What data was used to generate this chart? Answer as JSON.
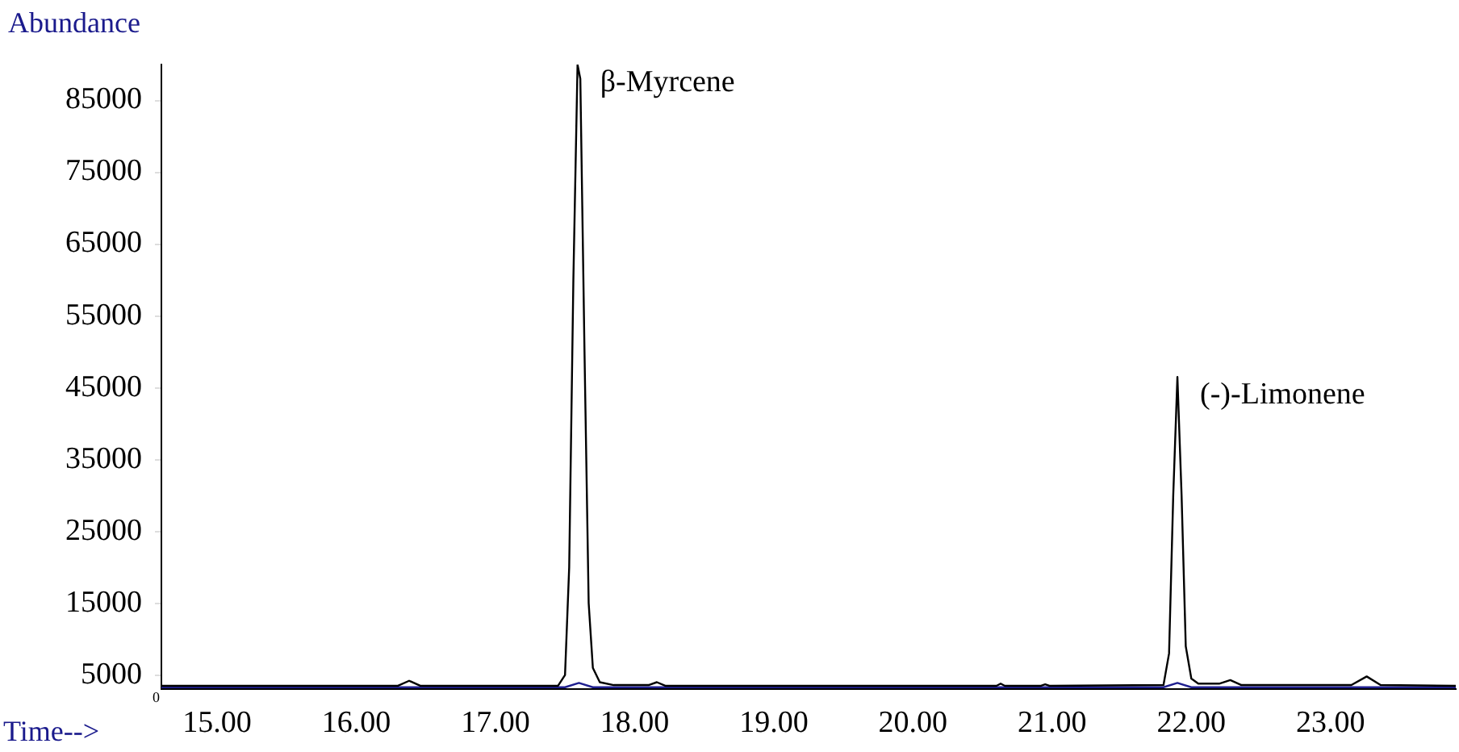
{
  "chart_data": {
    "type": "line",
    "xlabel": "Time-->",
    "ylabel": "Abundance",
    "xlim": [
      14.6,
      23.9
    ],
    "ylim": [
      3000,
      90000
    ],
    "xticks": [
      {
        "value": 15,
        "label": "15.00"
      },
      {
        "value": 16,
        "label": "16.00"
      },
      {
        "value": 17,
        "label": "17.00"
      },
      {
        "value": 18,
        "label": "18.00"
      },
      {
        "value": 19,
        "label": "19.00"
      },
      {
        "value": 20,
        "label": "20.00"
      },
      {
        "value": 21,
        "label": "21.00"
      },
      {
        "value": 22,
        "label": "22.00"
      },
      {
        "value": 23,
        "label": "23.00"
      }
    ],
    "yticks": [
      5000,
      15000,
      25000,
      35000,
      45000,
      55000,
      65000,
      75000,
      85000
    ],
    "grid": false,
    "legend": false,
    "marker": "none",
    "line_style": "solid",
    "series": [
      {
        "color": "#000000",
        "x": [
          14.6,
          16.3,
          16.38,
          16.46,
          17.45,
          17.5,
          17.53,
          17.56,
          17.59,
          17.61,
          17.64,
          17.67,
          17.7,
          17.75,
          17.85,
          18.1,
          18.16,
          18.22,
          20.6,
          20.63,
          20.66,
          20.92,
          20.95,
          20.98,
          21.8,
          21.84,
          21.87,
          21.9,
          21.93,
          21.96,
          22.0,
          22.05,
          22.2,
          22.28,
          22.36,
          23.15,
          23.26,
          23.36,
          23.9
        ],
        "values": [
          3500,
          3500,
          4200,
          3500,
          3500,
          5000,
          20000,
          60000,
          90000,
          88000,
          50000,
          15000,
          6000,
          4000,
          3600,
          3600,
          4000,
          3500,
          3500,
          3800,
          3500,
          3500,
          3700,
          3500,
          3600,
          8000,
          30000,
          46500,
          30000,
          9000,
          4500,
          3800,
          3800,
          4300,
          3600,
          3600,
          4800,
          3600,
          3500
        ]
      },
      {
        "color": "#1f1f8f",
        "x": [
          14.6,
          17.5,
          17.6,
          17.7,
          21.8,
          21.9,
          22.0,
          23.9
        ],
        "values": [
          3300,
          3300,
          3900,
          3300,
          3300,
          3900,
          3300,
          3300
        ]
      }
    ],
    "annotations": [
      {
        "text": "β-Myrcene",
        "x": 17.59,
        "y": 90000
      },
      {
        "text": "(-)-Limonene",
        "x": 21.9,
        "y": 46500
      },
      "0"
    ]
  }
}
